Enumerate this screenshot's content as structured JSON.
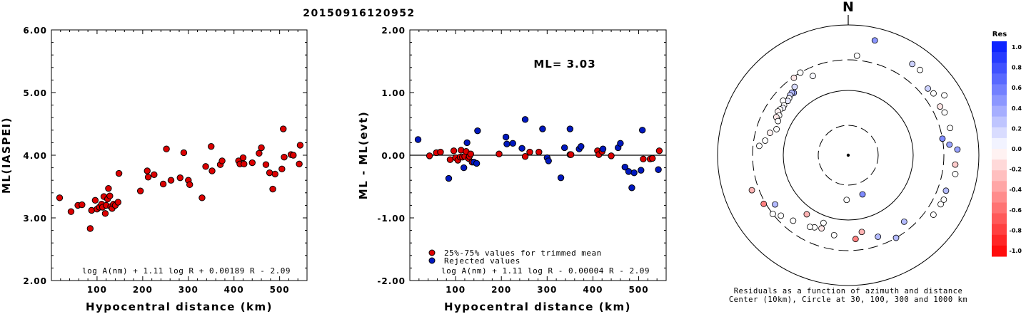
{
  "event_id": "20150916120952",
  "chart_data": [
    {
      "type": "scatter",
      "title": "",
      "xlabel": "Hypocentral distance (km)",
      "ylabel": "ML(IASPEI)",
      "xlim": [
        0,
        560
      ],
      "ylim": [
        2.0,
        6.0
      ],
      "xticks": [
        "100",
        "200",
        "300",
        "400",
        "500"
      ],
      "yticks": [
        "2.00",
        "3.00",
        "4.00",
        "5.00",
        "6.00"
      ],
      "formula": "log A(nm) + 1.11 log R + 0.00189 R - 2.09",
      "points": [
        [
          18,
          3.32
        ],
        [
          43,
          3.1
        ],
        [
          58,
          3.2
        ],
        [
          67,
          3.21
        ],
        [
          85,
          2.83
        ],
        [
          88,
          3.12
        ],
        [
          96,
          3.28
        ],
        [
          100,
          3.14
        ],
        [
          105,
          3.17
        ],
        [
          110,
          3.22
        ],
        [
          112,
          3.17
        ],
        [
          115,
          3.34
        ],
        [
          118,
          3.07
        ],
        [
          120,
          3.2
        ],
        [
          123,
          3.3
        ],
        [
          125,
          3.47
        ],
        [
          128,
          3.35
        ],
        [
          130,
          3.18
        ],
        [
          133,
          3.15
        ],
        [
          136,
          3.22
        ],
        [
          140,
          3.2
        ],
        [
          146,
          3.25
        ],
        [
          148,
          3.71
        ],
        [
          195,
          3.43
        ],
        [
          210,
          3.75
        ],
        [
          212,
          3.65
        ],
        [
          225,
          3.69
        ],
        [
          245,
          3.54
        ],
        [
          252,
          4.1
        ],
        [
          262,
          3.6
        ],
        [
          282,
          3.64
        ],
        [
          290,
          4.04
        ],
        [
          300,
          3.6
        ],
        [
          303,
          3.53
        ],
        [
          330,
          3.32
        ],
        [
          338,
          3.82
        ],
        [
          350,
          4.14
        ],
        [
          352,
          3.75
        ],
        [
          370,
          3.85
        ],
        [
          374,
          3.91
        ],
        [
          410,
          3.91
        ],
        [
          413,
          3.86
        ],
        [
          420,
          3.96
        ],
        [
          422,
          3.86
        ],
        [
          440,
          3.88
        ],
        [
          455,
          4.03
        ],
        [
          460,
          4.12
        ],
        [
          470,
          3.85
        ],
        [
          478,
          3.72
        ],
        [
          485,
          3.46
        ],
        [
          490,
          3.7
        ],
        [
          505,
          3.78
        ],
        [
          508,
          4.42
        ],
        [
          510,
          3.97
        ],
        [
          525,
          4.01
        ],
        [
          530,
          4.0
        ],
        [
          543,
          3.86
        ],
        [
          545,
          4.16
        ]
      ]
    },
    {
      "type": "scatter",
      "title": "",
      "xlabel": "Hypocentral distance (km)",
      "ylabel": "ML - ML(evt)",
      "xlim": [
        0,
        560
      ],
      "ylim": [
        -2.0,
        2.0
      ],
      "xticks": [
        "100",
        "200",
        "300",
        "400",
        "500"
      ],
      "yticks": [
        "-2.00",
        "-1.00",
        "0.00",
        "1.00",
        "2.00"
      ],
      "annotation": "ML= 3.03",
      "formula": "log A(nm) + 1.11 log R - 0.00004 R - 2.09",
      "legend": [
        {
          "label": "25%-75% values for trimmed mean",
          "color": "#dd0000"
        },
        {
          "label": "Rejected values",
          "color": "#0018c0"
        }
      ],
      "series": [
        {
          "name": "25%-75% values for trimmed mean",
          "color": "#dd0000",
          "points": [
            [
              43,
              -0.01
            ],
            [
              58,
              0.04
            ],
            [
              67,
              0.05
            ],
            [
              88,
              -0.07
            ],
            [
              96,
              0.07
            ],
            [
              100,
              -0.04
            ],
            [
              105,
              -0.08
            ],
            [
              110,
              -0.03
            ],
            [
              112,
              0.08
            ],
            [
              115,
              -0.03
            ],
            [
              120,
              -0.02
            ],
            [
              123,
              0.06
            ],
            [
              128,
              -0.05
            ],
            [
              130,
              -0.02
            ],
            [
              133,
              0.02
            ],
            [
              136,
              -0.11
            ],
            [
              195,
              0.02
            ],
            [
              252,
              -0.02
            ],
            [
              262,
              0.05
            ],
            [
              282,
              0.05
            ],
            [
              350,
              0.01
            ],
            [
              352,
              0.01
            ],
            [
              410,
              0.07
            ],
            [
              413,
              0.01
            ],
            [
              420,
              0.06
            ],
            [
              440,
              -0.01
            ],
            [
              510,
              -0.06
            ],
            [
              525,
              -0.06
            ],
            [
              530,
              -0.05
            ],
            [
              545,
              0.07
            ]
          ]
        },
        {
          "name": "Rejected values",
          "color": "#0018c0",
          "points": [
            [
              18,
              0.25
            ],
            [
              85,
              -0.37
            ],
            [
              118,
              -0.2
            ],
            [
              125,
              0.2
            ],
            [
              140,
              -0.11
            ],
            [
              146,
              -0.13
            ],
            [
              148,
              0.39
            ],
            [
              210,
              0.29
            ],
            [
              212,
              0.18
            ],
            [
              225,
              0.19
            ],
            [
              245,
              0.11
            ],
            [
              252,
              0.57
            ],
            [
              290,
              0.42
            ],
            [
              300,
              -0.04
            ],
            [
              303,
              -0.09
            ],
            [
              330,
              -0.36
            ],
            [
              338,
              0.12
            ],
            [
              350,
              0.42
            ],
            [
              370,
              0.1
            ],
            [
              374,
              0.14
            ],
            [
              422,
              0.1
            ],
            [
              455,
              0.12
            ],
            [
              460,
              0.19
            ],
            [
              470,
              -0.19
            ],
            [
              478,
              -0.26
            ],
            [
              485,
              -0.52
            ],
            [
              490,
              -0.28
            ],
            [
              505,
              -0.24
            ],
            [
              508,
              0.4
            ],
            [
              543,
              -0.23
            ]
          ]
        }
      ]
    },
    {
      "type": "scatter",
      "subtype": "polar",
      "title": "",
      "north_label": "N",
      "caption_line1": "Residuals as a function of azimuth and distance",
      "caption_line2": "Center (10km), Circle at 30, 100, 300 and 1000 km",
      "colorbar": {
        "title": "Res",
        "labels": [
          "1.0",
          "0.8",
          "0.6",
          "0.4",
          "0.2",
          "0.0",
          "-0.2",
          "-0.4",
          "-0.6",
          "-0.8",
          "-1.0"
        ],
        "max_color": "#0018ff",
        "min_color": "#ff0000"
      },
      "rings_km": [
        30,
        100,
        300,
        1000
      ],
      "stations_az_dist_res": [
        [
          336,
          220,
          0.03
        ],
        [
          330,
          300,
          0.0
        ],
        [
          325,
          290,
          -0.1
        ],
        [
          322,
          220,
          0.15
        ],
        [
          319,
          190,
          0.4
        ],
        [
          318,
          200,
          0.3
        ],
        [
          316,
          195,
          0.2
        ],
        [
          314,
          185,
          0.0
        ],
        [
          312,
          180,
          0.1
        ],
        [
          310,
          205,
          0.0
        ],
        [
          308,
          180,
          0.0
        ],
        [
          306,
          175,
          0.05
        ],
        [
          304,
          185,
          0.0
        ],
        [
          302,
          190,
          -0.05
        ],
        [
          300,
          170,
          0.0
        ],
        [
          298,
          180,
          -0.1
        ],
        [
          296,
          160,
          0.0
        ],
        [
          290,
          150,
          0.0
        ],
        [
          286,
          180,
          -0.05
        ],
        [
          280,
          200,
          0.0
        ],
        [
          276,
          240,
          0.0
        ],
        [
          5,
          350,
          0.0
        ],
        [
          13,
          650,
          0.45
        ],
        [
          35,
          520,
          0.2
        ],
        [
          40,
          520,
          0.0
        ],
        [
          50,
          400,
          0.2
        ],
        [
          54,
          420,
          0.0
        ],
        [
          58,
          550,
          0.0
        ],
        [
          62,
          400,
          -0.1
        ],
        [
          66,
          420,
          0.0
        ],
        [
          75,
          420,
          0.0
        ],
        [
          80,
          300,
          0.5
        ],
        [
          84,
          370,
          0.4
        ],
        [
          87,
          480,
          0.4
        ],
        [
          95,
          450,
          -0.2
        ],
        [
          100,
          470,
          0.0
        ],
        [
          110,
          400,
          0.3
        ],
        [
          115,
          420,
          0.0
        ],
        [
          118,
          410,
          0.0
        ],
        [
          125,
          400,
          0.0
        ],
        [
          140,
          220,
          0.3
        ],
        [
          150,
          300,
          0.3
        ],
        [
          160,
          220,
          0.3
        ],
        [
          170,
          160,
          -0.3
        ],
        [
          175,
          200,
          -0.5
        ],
        [
          182,
          50,
          0.0
        ],
        [
          190,
          180,
          0.0
        ],
        [
          200,
          160,
          -0.1
        ],
        [
          205,
          170,
          0.0
        ],
        [
          208,
          180,
          0.0
        ],
        [
          215,
          130,
          -0.3
        ],
        [
          220,
          210,
          0.0
        ],
        [
          228,
          250,
          0.0
        ],
        [
          232,
          300,
          0.0
        ],
        [
          236,
          230,
          0.3
        ],
        [
          240,
          320,
          -0.5
        ],
        [
          250,
          380,
          -0.3
        ],
        [
          160,
          45,
          0.5
        ],
        [
          200,
          130,
          0.0
        ]
      ]
    }
  ]
}
